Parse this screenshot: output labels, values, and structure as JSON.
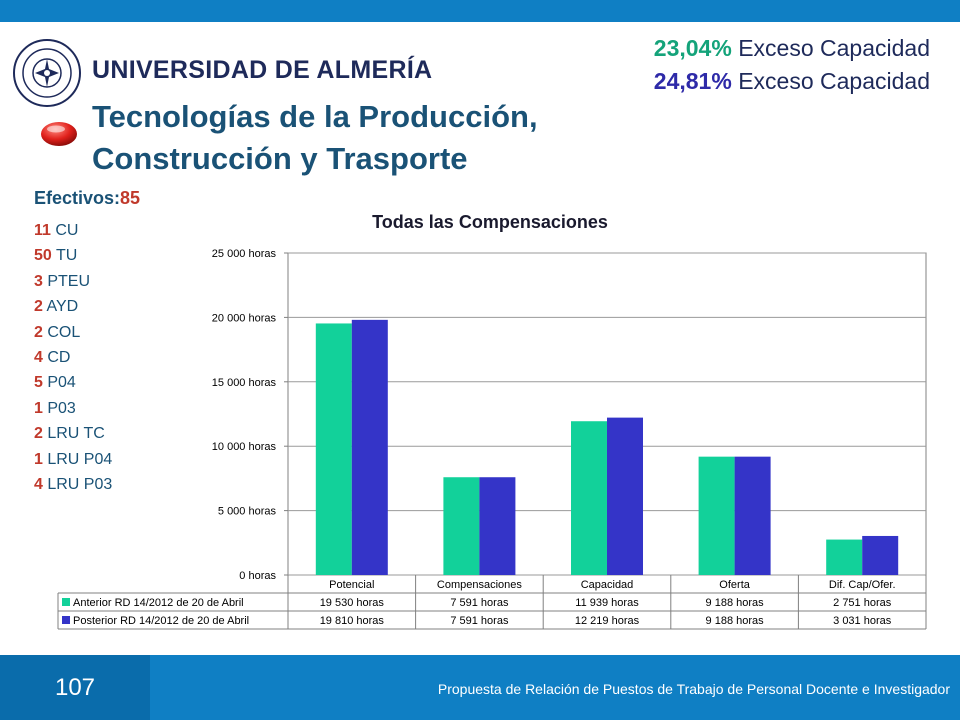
{
  "header": {
    "university": "UNIVERSIDAD DE ALMERÍA",
    "exceso": [
      {
        "pct": "23,04%",
        "label": " Exceso Capacidad",
        "color": "#14a37a"
      },
      {
        "pct": "24,81%",
        "label": " Exceso Capacidad",
        "color": "#2e2aa8"
      }
    ],
    "title_line1": "Tecnologías de la Producción,",
    "title_line2": "Construcción y Trasporte"
  },
  "efectivos": {
    "label": "Efectivos:",
    "count": "85",
    "items": [
      {
        "count": "11",
        "label": " CU"
      },
      {
        "count": "50",
        "label": " TU"
      },
      {
        "count": "3",
        "label": " PTEU"
      },
      {
        "count": "2",
        "label": " AYD"
      },
      {
        "count": "2",
        "label": " COL"
      },
      {
        "count": "4",
        "label": " CD"
      },
      {
        "count": "5",
        "label": " P04"
      },
      {
        "count": "1",
        "label": " P03"
      },
      {
        "count": "2",
        "label": " LRU TC"
      },
      {
        "count": "1",
        "label": " LRU P04"
      },
      {
        "count": "4",
        "label": " LRU P03"
      }
    ]
  },
  "chart_data": {
    "type": "bar",
    "title": "Todas las Compensaciones",
    "categories": [
      "Potencial",
      "Compensaciones",
      "Capacidad",
      "Oferta",
      "Dif. Cap/Ofer."
    ],
    "ylim": [
      0,
      25000
    ],
    "yticks": [
      0,
      5000,
      10000,
      15000,
      20000,
      25000
    ],
    "ytick_labels": [
      "0 horas",
      "5 000 horas",
      "10 000 horas",
      "15 000 horas",
      "20 000 horas",
      "25 000 horas"
    ],
    "grid": true,
    "legend": "data-table-below",
    "series": [
      {
        "name": "Anterior RD 14/2012 de 20 de Abril",
        "color": "#12d19a",
        "values": [
          19530,
          7591,
          11939,
          9188,
          2751
        ],
        "labels": [
          "19 530 horas",
          "7 591 horas",
          "11 939 horas",
          "9 188 horas",
          "2 751 horas"
        ]
      },
      {
        "name": "Posterior RD 14/2012 de 20 de Abril",
        "color": "#3434c8",
        "values": [
          19810,
          7591,
          12219,
          9188,
          3031
        ],
        "labels": [
          "19 810 horas",
          "7 591 horas",
          "12 219 horas",
          "9 188 horas",
          "3 031 horas"
        ]
      }
    ]
  },
  "footer": {
    "page": "107",
    "text": "Propuesta de Relación de Puestos de Trabajo de Personal Docente e Investigador"
  }
}
